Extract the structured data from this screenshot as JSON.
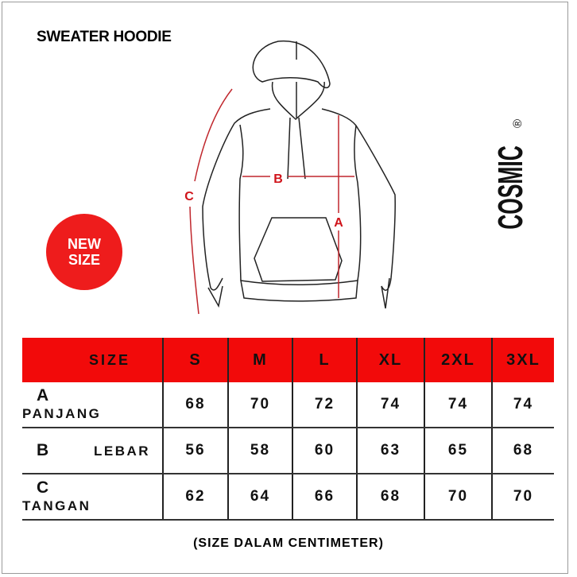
{
  "title": "SWEATER HOODIE",
  "brand": "COSMIC",
  "brand_mark": "®",
  "badge": {
    "line1": "NEW",
    "line2": "SIZE",
    "color": "#ee1c1c"
  },
  "diagram_labels": {
    "a": "A",
    "b": "B",
    "c": "C"
  },
  "table": {
    "header_color": "#f20a0a",
    "headers": [
      "SIZE",
      "S",
      "M",
      "L",
      "XL",
      "2XL",
      "3XL"
    ],
    "rows": [
      {
        "key": "A",
        "name": "PANJANG",
        "values": [
          "68",
          "70",
          "72",
          "74",
          "74",
          "74"
        ]
      },
      {
        "key": "B",
        "name": "LEBAR",
        "values": [
          "56",
          "58",
          "60",
          "63",
          "65",
          "68"
        ]
      },
      {
        "key": "C",
        "name": "TANGAN",
        "values": [
          "62",
          "64",
          "66",
          "68",
          "70",
          "70"
        ]
      }
    ]
  },
  "note": "(SIZE DALAM CENTIMETER)"
}
